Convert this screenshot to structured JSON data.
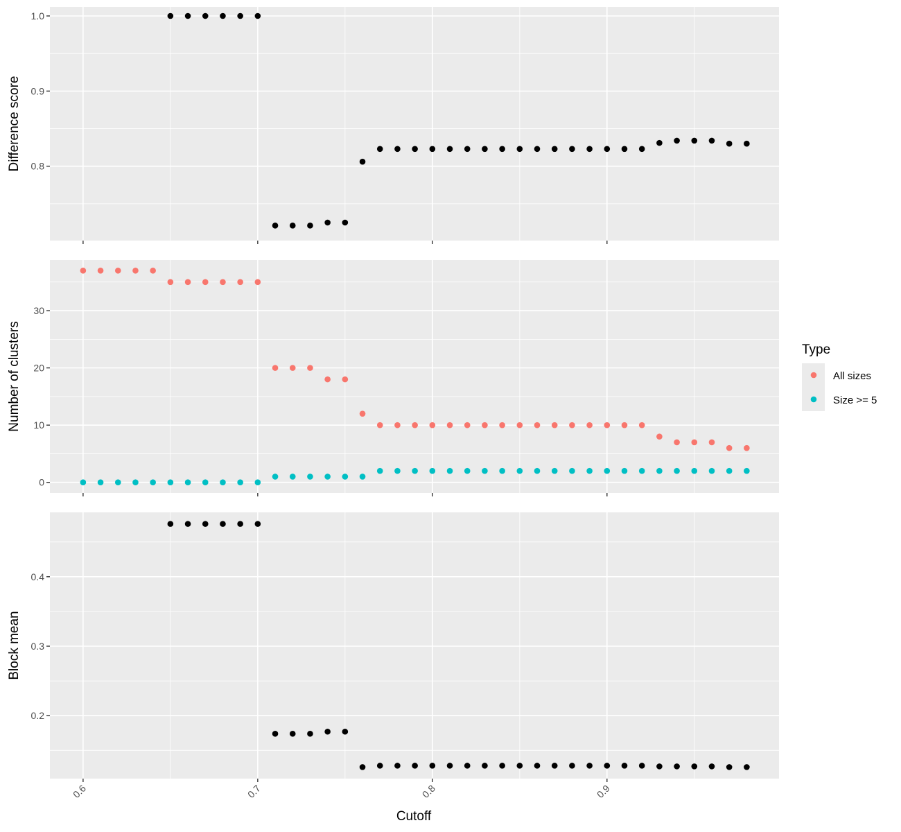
{
  "chart_data": {
    "type": "scatter",
    "xlabel": "Cutoff",
    "xlim": [
      0.581,
      0.9985
    ],
    "x_ticks": [
      0.6,
      0.7,
      0.8,
      0.9
    ],
    "x_tick_labels": [
      "0.6",
      "0.7",
      "0.8",
      "0.9"
    ],
    "x": [
      0.6,
      0.61,
      0.62,
      0.63,
      0.64,
      0.65,
      0.66,
      0.67,
      0.68,
      0.69,
      0.7,
      0.71,
      0.72,
      0.73,
      0.74,
      0.75,
      0.76,
      0.77,
      0.78,
      0.79,
      0.8,
      0.81,
      0.82,
      0.83,
      0.84,
      0.85,
      0.86,
      0.87,
      0.88,
      0.89,
      0.9,
      0.91,
      0.92,
      0.93,
      0.94,
      0.95,
      0.96,
      0.97,
      0.98
    ],
    "grid": true,
    "panels": [
      {
        "ylabel": "Difference score",
        "ylim": [
          0.701,
          1.012
        ],
        "y_ticks": [
          0.8,
          0.9,
          1.0
        ],
        "y_tick_labels": [
          "0.8",
          "0.9",
          "1.0"
        ],
        "series": [
          {
            "color": "#000000",
            "start_index": 5,
            "values": [
              1.0,
              1.0,
              1.0,
              1.0,
              1.0,
              1.0,
              0.721,
              0.721,
              0.721,
              0.725,
              0.725,
              0.806,
              0.823,
              0.823,
              0.823,
              0.823,
              0.823,
              0.823,
              0.823,
              0.823,
              0.823,
              0.823,
              0.823,
              0.823,
              0.823,
              0.823,
              0.823,
              0.823,
              0.831,
              0.834,
              0.834,
              0.834,
              0.83,
              0.83
            ]
          }
        ]
      },
      {
        "ylabel": "Number of clusters",
        "ylim": [
          -1.85,
          38.85
        ],
        "y_ticks": [
          0,
          10,
          20,
          30
        ],
        "y_tick_labels": [
          "0",
          "10",
          "20",
          "30"
        ],
        "series": [
          {
            "name": "All sizes",
            "color": "#F8766D",
            "start_index": 0,
            "values": [
              37,
              37,
              37,
              37,
              37,
              35,
              35,
              35,
              35,
              35,
              35,
              20,
              20,
              20,
              18,
              18,
              12,
              10,
              10,
              10,
              10,
              10,
              10,
              10,
              10,
              10,
              10,
              10,
              10,
              10,
              10,
              10,
              10,
              8,
              7,
              7,
              7,
              6,
              6
            ]
          },
          {
            "name": "Size >= 5",
            "color": "#00BFC4",
            "start_index": 0,
            "values": [
              0,
              0,
              0,
              0,
              0,
              0,
              0,
              0,
              0,
              0,
              0,
              1,
              1,
              1,
              1,
              1,
              1,
              2,
              2,
              2,
              2,
              2,
              2,
              2,
              2,
              2,
              2,
              2,
              2,
              2,
              2,
              2,
              2,
              2,
              2,
              2,
              2,
              2,
              2
            ]
          }
        ]
      },
      {
        "ylabel": "Block mean",
        "ylim": [
          0.1094,
          0.4926
        ],
        "y_ticks": [
          0.2,
          0.3,
          0.4
        ],
        "y_tick_labels": [
          "0.2",
          "0.3",
          "0.4"
        ],
        "series": [
          {
            "color": "#000000",
            "start_index": 5,
            "values": [
              0.476,
              0.476,
              0.476,
              0.476,
              0.476,
              0.476,
              0.174,
              0.174,
              0.174,
              0.177,
              0.177,
              0.126,
              0.128,
              0.128,
              0.128,
              0.128,
              0.128,
              0.128,
              0.128,
              0.128,
              0.128,
              0.128,
              0.128,
              0.128,
              0.128,
              0.128,
              0.128,
              0.128,
              0.127,
              0.127,
              0.127,
              0.127,
              0.126,
              0.126
            ]
          }
        ]
      }
    ],
    "legend": {
      "title": "Type",
      "position": "right",
      "entries": [
        {
          "label": "All sizes",
          "color": "#F8766D"
        },
        {
          "label": "Size >= 5",
          "color": "#00BFC4"
        }
      ]
    }
  }
}
